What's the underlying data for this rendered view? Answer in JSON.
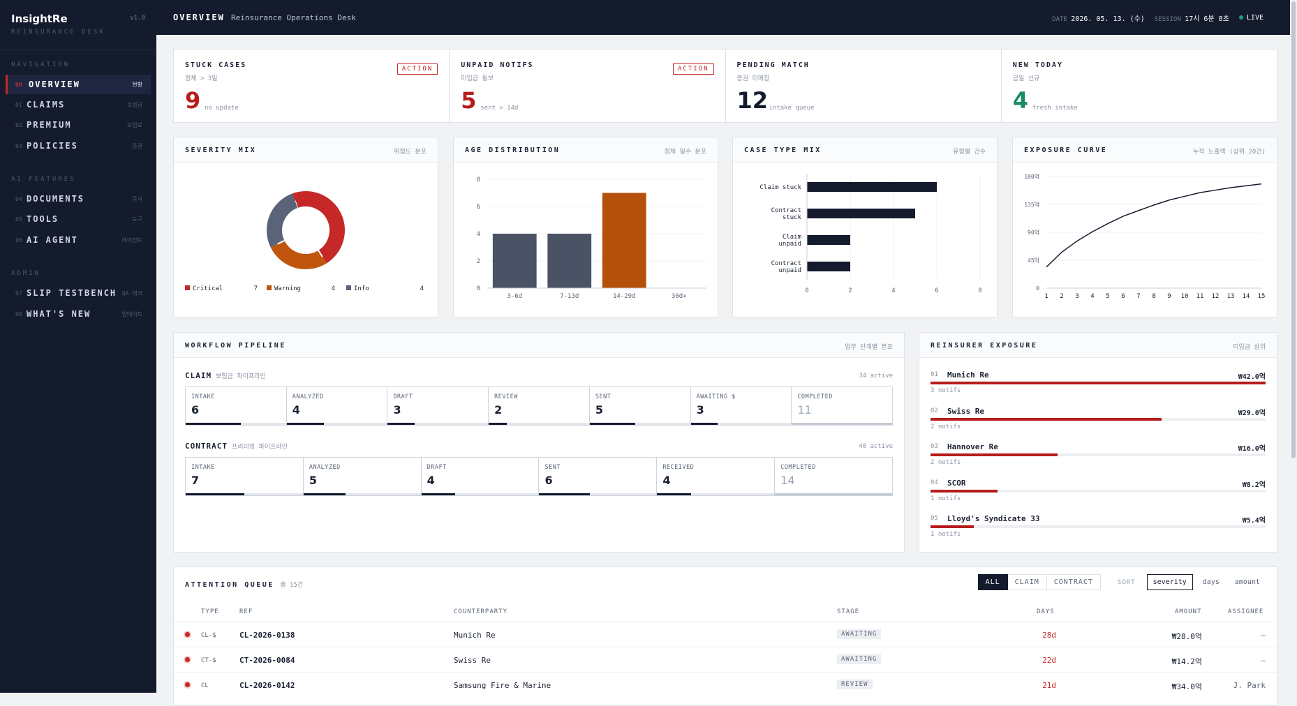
{
  "sidebar": {
    "brand": "InsightRe",
    "version": "v1.0",
    "brand_sub": "REINSURANCE DESK",
    "sections": {
      "navigation": "NAVIGATION",
      "ai": "AI FEATURES",
      "admin": "ADMIN"
    },
    "items": [
      {
        "num": "00",
        "label": "OVERVIEW",
        "kr": "현황"
      },
      {
        "num": "01",
        "label": "CLAIMS",
        "kr": "보험금"
      },
      {
        "num": "02",
        "label": "PREMIUM",
        "kr": "보험료"
      },
      {
        "num": "03",
        "label": "POLICIES",
        "kr": "증권"
      },
      {
        "num": "04",
        "label": "DOCUMENTS",
        "kr": "문서"
      },
      {
        "num": "05",
        "label": "TOOLS",
        "kr": "도구"
      },
      {
        "num": "06",
        "label": "AI AGENT",
        "kr": "에이전트"
      },
      {
        "num": "07",
        "label": "SLIP TESTBENCH",
        "kr": "QA 테크"
      },
      {
        "num": "08",
        "label": "WHAT'S NEW",
        "kr": "업데이트"
      }
    ]
  },
  "header": {
    "title": "OVERVIEW",
    "subtitle": "Reinsurance Operations Desk",
    "date_label": "DATE",
    "date": "2026. 05. 13. (수)",
    "session_label": "SESSION",
    "session": "17시 6분 8초",
    "live": "LIVE"
  },
  "kpis": [
    {
      "title": "STUCK CASES",
      "sub": "정체 > 3일",
      "badge": "ACTION",
      "value": "9",
      "note": "no update",
      "color": "#b71c1c"
    },
    {
      "title": "UNPAID NOTIFS",
      "sub": "미입금 통보",
      "badge": "ACTION",
      "value": "5",
      "note": "sent > 14d",
      "color": "#b71c1c"
    },
    {
      "title": "PENDING MATCH",
      "sub": "증권 미매칭",
      "badge": "",
      "value": "12",
      "note": "intake queue",
      "color": "#141b2d"
    },
    {
      "title": "NEW TODAY",
      "sub": "금일 신규",
      "badge": "",
      "value": "4",
      "note": "fresh intake",
      "color": "#1a8a63"
    }
  ],
  "panels": {
    "severity": {
      "title": "SEVERITY MIX",
      "sub": "위험도 분포"
    },
    "age": {
      "title": "AGE DISTRIBUTION",
      "sub": "정체 일수 분포"
    },
    "casetype": {
      "title": "CASE TYPE MIX",
      "sub": "유형별 건수"
    },
    "exposure": {
      "title": "EXPOSURE CURVE",
      "sub": "누적 노출액 (상위 20건)"
    },
    "pipeline": {
      "title": "WORKFLOW PIPELINE",
      "sub": "업무 단계별 분포"
    },
    "reinsurer": {
      "title": "REINSURER EXPOSURE",
      "sub": "미입금 상위"
    }
  },
  "chart_data": [
    {
      "type": "pie",
      "title": "SEVERITY MIX",
      "categories": [
        "Critical",
        "Warning",
        "Info"
      ],
      "values": [
        7,
        4,
        4
      ],
      "colors": [
        "#c62828",
        "#c0560d",
        "#5a6478"
      ],
      "legend": "bottom"
    },
    {
      "type": "bar",
      "title": "AGE DISTRIBUTION",
      "categories": [
        "3-6d",
        "7-13d",
        "14-29d",
        "30d+"
      ],
      "values": [
        4,
        4,
        7,
        0
      ],
      "colors": [
        "#4a5366",
        "#4a5366",
        "#b4500a",
        "#4a5366"
      ],
      "ylim": [
        0,
        8
      ],
      "yticks": [
        0,
        2,
        4,
        6,
        8
      ]
    },
    {
      "type": "bar",
      "orientation": "horizontal",
      "title": "CASE TYPE MIX",
      "categories": [
        "Claim stuck",
        "Contract stuck",
        "Claim unpaid",
        "Contract unpaid"
      ],
      "values": [
        6,
        5,
        2,
        2
      ],
      "xlim": [
        0,
        8
      ],
      "xticks": [
        0,
        2,
        4,
        6,
        8
      ]
    },
    {
      "type": "line",
      "title": "EXPOSURE CURVE",
      "x": [
        1,
        2,
        3,
        4,
        5,
        6,
        7,
        8,
        9,
        10,
        11,
        12,
        13,
        14,
        15
      ],
      "values": [
        34,
        58,
        76,
        91,
        104,
        116,
        125,
        134,
        142,
        148,
        154,
        158,
        162,
        165,
        168
      ],
      "ylim": [
        0,
        180
      ],
      "yticks": [
        "0",
        "45억",
        "90억",
        "135억",
        "180억"
      ]
    }
  ],
  "pipeline": {
    "claim": {
      "label": "CLAIM",
      "kr": "보험금 파이프라인",
      "active": "34 active",
      "stages": [
        {
          "name": "INTAKE",
          "value": "6",
          "frac": 0.55
        },
        {
          "name": "ANALYZED",
          "value": "4",
          "frac": 0.37
        },
        {
          "name": "DRAFT",
          "value": "3",
          "frac": 0.27
        },
        {
          "name": "REVIEW",
          "value": "2",
          "frac": 0.18
        },
        {
          "name": "SENT",
          "value": "5",
          "frac": 0.45
        },
        {
          "name": "AWAITING $",
          "value": "3",
          "frac": 0.27
        },
        {
          "name": "COMPLETED",
          "value": "11",
          "frac": 1.0,
          "done": true
        }
      ]
    },
    "contract": {
      "label": "CONTRACT",
      "kr": "프리미엄 파이프라인",
      "active": "40 active",
      "stages": [
        {
          "name": "INTAKE",
          "value": "7",
          "frac": 0.5
        },
        {
          "name": "ANALYZED",
          "value": "5",
          "frac": 0.36
        },
        {
          "name": "DRAFT",
          "value": "4",
          "frac": 0.29
        },
        {
          "name": "SENT",
          "value": "6",
          "frac": 0.43
        },
        {
          "name": "RECEIVED",
          "value": "4",
          "frac": 0.29
        },
        {
          "name": "COMPLETED",
          "value": "14",
          "frac": 1.0,
          "done": true
        }
      ]
    }
  },
  "reinsurers": [
    {
      "num": "01",
      "name": "Munich Re",
      "amount": "₩42.0억",
      "notifs": "3 notifs",
      "frac": 1.0
    },
    {
      "num": "02",
      "name": "Swiss Re",
      "amount": "₩29.0억",
      "notifs": "2 notifs",
      "frac": 0.69
    },
    {
      "num": "03",
      "name": "Hannover Re",
      "amount": "₩16.0억",
      "notifs": "2 notifs",
      "frac": 0.38
    },
    {
      "num": "04",
      "name": "SCOR",
      "amount": "₩8.2억",
      "notifs": "1 notifs",
      "frac": 0.2
    },
    {
      "num": "05",
      "name": "Lloyd's Syndicate 33",
      "amount": "₩5.4억",
      "notifs": "1 notifs",
      "frac": 0.13
    }
  ],
  "queue": {
    "title": "ATTENTION QUEUE",
    "count": "총 15건",
    "filters": [
      "ALL",
      "CLAIM",
      "CONTRACT"
    ],
    "sort_label": "SORT",
    "sorts": [
      "severity",
      "days",
      "amount"
    ],
    "columns": [
      "TYPE",
      "REF",
      "COUNTERPARTY",
      "STAGE",
      "DAYS",
      "AMOUNT",
      "ASSIGNEE"
    ],
    "rows": [
      {
        "type": "CL-$",
        "ref": "CL-2026-0138",
        "counterparty": "Munich Re",
        "stage": "AWAITING",
        "days": "28d",
        "amount": "₩28.0억",
        "assignee": "—"
      },
      {
        "type": "CT-$",
        "ref": "CT-2026-0084",
        "counterparty": "Swiss Re",
        "stage": "AWAITING",
        "days": "22d",
        "amount": "₩14.2억",
        "assignee": "—"
      },
      {
        "type": "CL",
        "ref": "CL-2026-0142",
        "counterparty": "Samsung Fire & Marine",
        "stage": "REVIEW",
        "days": "21d",
        "amount": "₩34.0억",
        "assignee": "J. Park"
      }
    ]
  }
}
